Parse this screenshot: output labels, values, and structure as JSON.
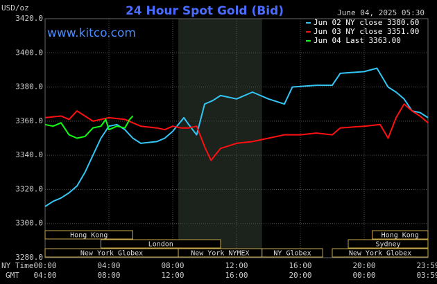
{
  "chart_data": {
    "type": "line",
    "title": "24 Hour Spot Gold (Bid)",
    "timestamp": "June 04, 2025 05:30",
    "watermark": "www.kitco.com",
    "y_label": "USD/oz",
    "x_label": "NY Time",
    "x_label_gmt": "GMT",
    "xlim": [
      0,
      24
    ],
    "ylim": [
      3280,
      3420
    ],
    "yticks": [
      {
        "value": 3280,
        "label": "3280.0"
      },
      {
        "value": 3300,
        "label": "3300.0"
      },
      {
        "value": 3320,
        "label": "3320.0"
      },
      {
        "value": 3340,
        "label": "3340.0"
      },
      {
        "value": 3360,
        "label": "3360.0"
      },
      {
        "value": 3380,
        "label": "3380.0"
      },
      {
        "value": 3400,
        "label": "3400.0"
      },
      {
        "value": 3420,
        "label": "3420.0"
      }
    ],
    "xticks": [
      {
        "value": 0,
        "label": "00:00"
      },
      {
        "value": 4,
        "label": "04:00"
      },
      {
        "value": 8,
        "label": "08:00"
      },
      {
        "value": 12,
        "label": "12:00"
      },
      {
        "value": 16,
        "label": "16:00"
      },
      {
        "value": 20,
        "label": "20:00"
      },
      {
        "value": 24,
        "label": "23:59"
      }
    ],
    "xticks_gmt": [
      "04:00",
      "08:00",
      "12:00",
      "16:00",
      "20:00",
      "00:00",
      "03:59"
    ],
    "grid": true,
    "shaded": [
      8.35,
      13.6
    ],
    "session_rows": [
      [
        {
          "name": "Hong Kong",
          "start": 0,
          "end": 5.5
        },
        {
          "name": "Hong Kong",
          "start": 20.5,
          "end": 24
        }
      ],
      [
        {
          "name": "London",
          "start": 3.5,
          "end": 11
        },
        {
          "name": "Sydney",
          "start": 19,
          "end": 24
        }
      ],
      [
        {
          "name": "New York Globex",
          "start": 0,
          "end": 8.35
        },
        {
          "name": "New York NYMEX",
          "start": 8.35,
          "end": 13.6
        },
        {
          "name": "NY Globex",
          "start": 13.6,
          "end": 17.4
        },
        {
          "name": "New York Globex",
          "start": 18,
          "end": 24
        }
      ]
    ],
    "series": [
      {
        "name": "Jun 02 NY close 3380.60",
        "color": "#33c6f5",
        "x": [
          0,
          0.5,
          1,
          1.5,
          2,
          2.5,
          3,
          3.5,
          4,
          4.5,
          5,
          5.5,
          6,
          7,
          7.5,
          8,
          8.7,
          9,
          9.5,
          10,
          10.5,
          11,
          12,
          13,
          14,
          15,
          15.5,
          17,
          18,
          18.5,
          20,
          20.8,
          21.5,
          22,
          22.5,
          23,
          23.5,
          24
        ],
        "values": [
          3310,
          3313,
          3315,
          3318,
          3322,
          3330,
          3340,
          3350,
          3357,
          3358,
          3355,
          3350,
          3347,
          3348,
          3350,
          3354,
          3362,
          3358,
          3352,
          3370,
          3372,
          3375,
          3373,
          3377,
          3373,
          3370,
          3380,
          3381,
          3381,
          3388,
          3389,
          3391,
          3380,
          3377,
          3373,
          3366,
          3365,
          3362
        ]
      },
      {
        "name": "Jun 03 NY close 3351.00",
        "color": "#ff1010",
        "x": [
          0,
          1,
          1.5,
          2,
          3,
          4,
          5,
          5.5,
          6,
          7,
          7.5,
          8,
          8.5,
          9,
          9.5,
          10,
          10.4,
          11,
          12,
          13,
          14,
          15,
          16,
          17,
          18,
          18.5,
          20,
          21,
          21.5,
          22,
          22.5,
          23,
          23.5,
          24
        ],
        "values": [
          3362,
          3363,
          3361,
          3366,
          3360,
          3362,
          3361,
          3359,
          3357,
          3356,
          3355,
          3357,
          3356,
          3356,
          3357,
          3345,
          3337,
          3344,
          3347,
          3348,
          3350,
          3352,
          3352,
          3353,
          3352,
          3356,
          3357,
          3358,
          3350,
          3362,
          3370,
          3366,
          3363,
          3359
        ]
      },
      {
        "name": "Jun 04 Last 3363.00",
        "color": "#10ff10",
        "x": [
          0,
          0.5,
          1,
          1.5,
          2,
          2.5,
          3,
          3.5,
          3.8,
          4,
          4.5,
          5,
          5.3,
          5.5
        ],
        "values": [
          3358,
          3357,
          3359,
          3352,
          3350,
          3351,
          3356,
          3357,
          3361,
          3355,
          3357,
          3356,
          3361,
          3363
        ]
      }
    ]
  }
}
